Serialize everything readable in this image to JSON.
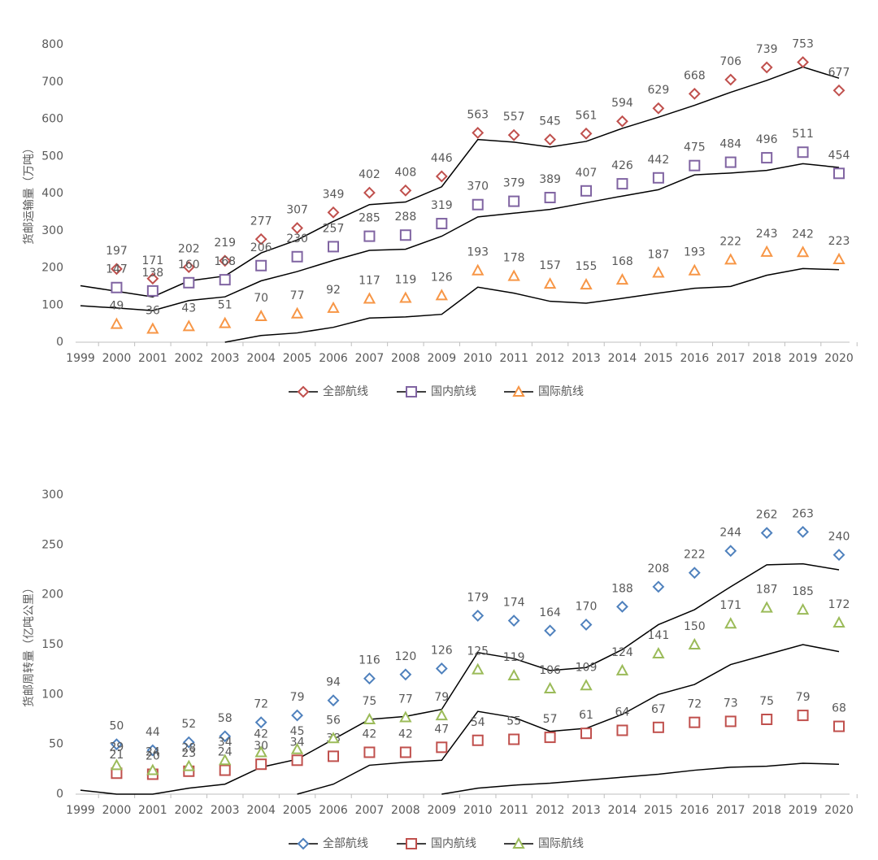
{
  "chart_data": [
    {
      "type": "scatter_line",
      "y_label": "货邮运输量（万吨）",
      "categories": [
        "1999",
        "2000",
        "2001",
        "2002",
        "2003",
        "2004",
        "2005",
        "2006",
        "2007",
        "2008",
        "2009",
        "2010",
        "2011",
        "2012",
        "2013",
        "2014",
        "2015",
        "2016",
        "2017",
        "2018",
        "2019",
        "2020"
      ],
      "ylim": [
        0,
        800
      ],
      "yticks": [
        0,
        100,
        200,
        300,
        400,
        500,
        600,
        700,
        800
      ],
      "series": [
        {
          "name": "全部航线",
          "color": "#c0504d",
          "marker": "diamond",
          "values": [
            null,
            197,
            171,
            202,
            219,
            277,
            307,
            349,
            402,
            408,
            446,
            563,
            557,
            545,
            561,
            594,
            629,
            668,
            706,
            739,
            753,
            677
          ]
        },
        {
          "name": "国内航线",
          "color": "#8064a2",
          "marker": "square",
          "values": [
            null,
            147,
            138,
            160,
            168,
            206,
            230,
            257,
            285,
            288,
            319,
            370,
            379,
            389,
            407,
            426,
            442,
            475,
            484,
            496,
            511,
            454
          ]
        },
        {
          "name": "国际航线",
          "color": "#f79646",
          "marker": "triangle",
          "values": [
            null,
            49,
            36,
            43,
            51,
            70,
            77,
            92,
            117,
            119,
            126,
            193,
            178,
            157,
            155,
            168,
            187,
            193,
            222,
            243,
            242,
            223
          ]
        }
      ],
      "trendlines": [
        {
          "color": "#000000",
          "values": [
            152,
            137,
            122,
            165,
            178,
            240,
            275,
            325,
            370,
            377,
            418,
            545,
            538,
            525,
            540,
            575,
            605,
            637,
            672,
            704,
            740,
            710
          ]
        },
        {
          "color": "#000000",
          "values": [
            98,
            92,
            85,
            112,
            122,
            165,
            190,
            220,
            247,
            250,
            285,
            337,
            347,
            357,
            375,
            393,
            410,
            450,
            455,
            462,
            480,
            470
          ]
        },
        {
          "color": "#000000",
          "values": [
            null,
            null,
            null,
            null,
            0,
            18,
            25,
            40,
            65,
            68,
            75,
            148,
            132,
            110,
            105,
            118,
            132,
            145,
            150,
            180,
            198,
            195
          ]
        }
      ]
    },
    {
      "type": "scatter_line",
      "y_label": "货邮周转量（亿吨公里）",
      "categories": [
        "1999",
        "2000",
        "2001",
        "2002",
        "2003",
        "2004",
        "2005",
        "2006",
        "2007",
        "2008",
        "2009",
        "2010",
        "2011",
        "2012",
        "2013",
        "2014",
        "2015",
        "2016",
        "2017",
        "2018",
        "2019",
        "2020"
      ],
      "ylim": [
        0,
        300
      ],
      "yticks": [
        0,
        50,
        100,
        150,
        200,
        250,
        300
      ],
      "series": [
        {
          "name": "全部航线",
          "color": "#4f81bd",
          "marker": "diamond",
          "values": [
            null,
            50,
            44,
            52,
            58,
            72,
            79,
            94,
            116,
            120,
            126,
            179,
            174,
            164,
            170,
            188,
            208,
            222,
            244,
            262,
            263,
            240
          ]
        },
        {
          "name": "国内航线",
          "color": "#c0504d",
          "marker": "square",
          "values": [
            null,
            21,
            20,
            23,
            24,
            30,
            34,
            38,
            42,
            42,
            47,
            54,
            55,
            57,
            61,
            64,
            67,
            72,
            73,
            75,
            79,
            68
          ]
        },
        {
          "name": "国际航线",
          "color": "#9bbb59",
          "marker": "triangle",
          "values": [
            null,
            29,
            24,
            28,
            34,
            42,
            45,
            56,
            75,
            77,
            79,
            125,
            119,
            106,
            109,
            124,
            141,
            150,
            171,
            187,
            185,
            172
          ]
        }
      ],
      "trendlines": [
        {
          "color": "#000000",
          "values": [
            4,
            0,
            0,
            6,
            10,
            27,
            35,
            55,
            75,
            78,
            85,
            142,
            136,
            124,
            127,
            145,
            170,
            185,
            208,
            230,
            231,
            225
          ]
        },
        {
          "color": "#000000",
          "values": [
            null,
            null,
            null,
            null,
            null,
            null,
            0,
            10,
            29,
            32,
            34,
            83,
            77,
            63,
            66,
            80,
            100,
            110,
            130,
            140,
            150,
            143
          ]
        },
        {
          "color": "#000000",
          "values": [
            null,
            null,
            null,
            null,
            null,
            null,
            null,
            null,
            null,
            null,
            0,
            6,
            9,
            11,
            14,
            17,
            20,
            24,
            27,
            28,
            31,
            30
          ]
        }
      ]
    }
  ]
}
